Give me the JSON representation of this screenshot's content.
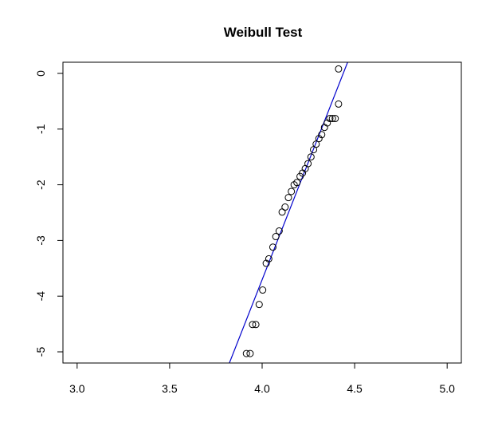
{
  "chart_data": {
    "type": "scatter",
    "title": "Weibull Test",
    "xlabel": "",
    "ylabel": "",
    "xlim": [
      3.0,
      5.0
    ],
    "ylim": [
      -5.0,
      0.0
    ],
    "x_ticks": [
      "3.0",
      "3.5",
      "4.0",
      "4.5",
      "5.0"
    ],
    "y_ticks": [
      "0",
      "-1",
      "-2",
      "-3",
      "-4",
      "-5"
    ],
    "grid": false,
    "points": {
      "x": [
        3.915,
        3.935,
        3.948,
        3.966,
        3.984,
        4.003,
        4.022,
        4.036,
        4.058,
        4.074,
        4.092,
        4.108,
        4.124,
        4.142,
        4.158,
        4.173,
        4.188,
        4.205,
        4.218,
        4.233,
        4.248,
        4.264,
        4.278,
        4.292,
        4.307,
        4.322,
        4.337,
        4.352,
        4.366,
        4.38,
        4.395,
        4.413
      ],
      "y": [
        -5.03,
        -5.03,
        -4.51,
        -4.51,
        -4.15,
        -3.89,
        -3.41,
        -3.33,
        -3.12,
        -2.93,
        -2.83,
        -2.49,
        -2.4,
        -2.23,
        -2.12,
        -2.0,
        -1.96,
        -1.85,
        -1.79,
        -1.71,
        -1.62,
        -1.5,
        -1.37,
        -1.27,
        -1.17,
        -1.1,
        -0.97,
        -0.89,
        -0.81,
        -0.81,
        -0.81,
        -0.55
      ]
    },
    "outlier_point": {
      "x": 4.413,
      "y": 0.08
    },
    "fit_line": {
      "x": [
        3.823,
        4.462
      ],
      "y": [
        -5.2,
        0.2
      ],
      "color": "#0000cc"
    },
    "point_color": "#000000"
  }
}
